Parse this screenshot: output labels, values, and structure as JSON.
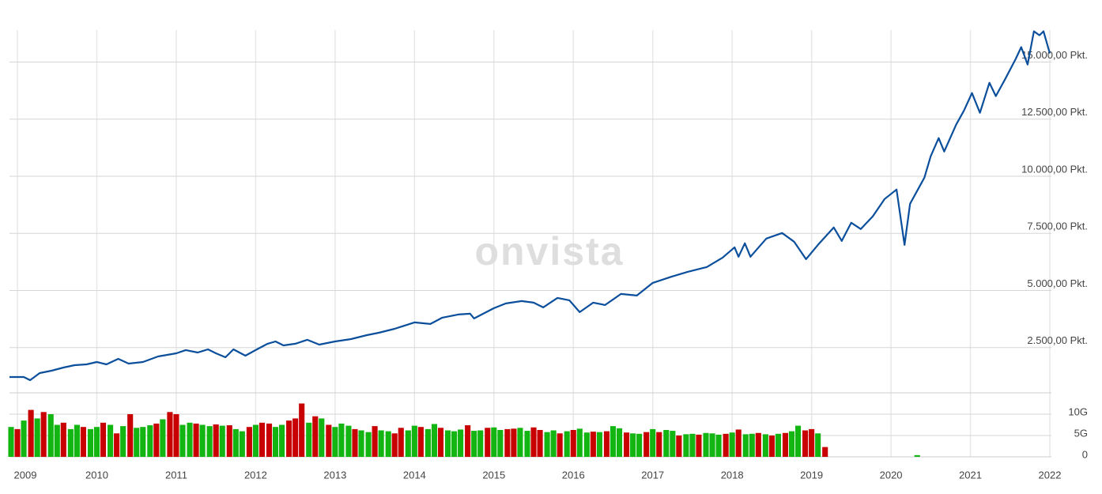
{
  "chart_data": [
    {
      "type": "line",
      "watermark": "onvista",
      "color": "#0b4f9c",
      "grid": true,
      "x": [
        2008.9,
        2009.08,
        2009.16,
        2009.28,
        2009.43,
        2009.58,
        2009.72,
        2009.87,
        2010.0,
        2010.12,
        2010.27,
        2010.4,
        2010.58,
        2010.77,
        2011.0,
        2011.12,
        2011.27,
        2011.4,
        2011.5,
        2011.62,
        2011.72,
        2011.87,
        2012.0,
        2012.15,
        2012.25,
        2012.35,
        2012.5,
        2012.65,
        2012.8,
        2013.0,
        2013.2,
        2013.4,
        2013.55,
        2013.75,
        2014.0,
        2014.2,
        2014.35,
        2014.55,
        2014.7,
        2014.75,
        2015.0,
        2015.15,
        2015.35,
        2015.5,
        2015.62,
        2015.8,
        2015.95,
        2016.08,
        2016.25,
        2016.4,
        2016.6,
        2016.8,
        2017.0,
        2017.24,
        2017.44,
        2017.68,
        2017.88,
        2018.03,
        2018.08,
        2018.16,
        2018.23,
        2018.43,
        2018.63,
        2018.78,
        2018.93,
        2019.08,
        2019.28,
        2019.38,
        2019.5,
        2019.62,
        2019.77,
        2019.92,
        2020.07,
        2020.17,
        2020.24,
        2020.42,
        2020.5,
        2020.6,
        2020.67,
        2020.82,
        2020.92,
        2021.02,
        2021.12,
        2021.24,
        2021.32,
        2021.44,
        2021.57,
        2021.64,
        2021.72,
        2021.8,
        2021.87,
        2021.92,
        2022.0
      ],
      "values": [
        1212,
        1212,
        1074,
        1385,
        1489,
        1628,
        1731,
        1766,
        1870,
        1766,
        2008,
        1800,
        1870,
        2112,
        2251,
        2390,
        2286,
        2424,
        2251,
        2078,
        2424,
        2147,
        2390,
        2667,
        2770,
        2597,
        2667,
        2840,
        2632,
        2770,
        2874,
        3047,
        3151,
        3324,
        3601,
        3532,
        3809,
        3948,
        3982,
        3775,
        4225,
        4433,
        4536,
        4467,
        4259,
        4675,
        4571,
        4052,
        4467,
        4363,
        4848,
        4779,
        5333,
        5610,
        5818,
        6026,
        6441,
        6891,
        6476,
        7065,
        6476,
        7272,
        7515,
        7134,
        6372,
        6995,
        7757,
        7168,
        7965,
        7688,
        8242,
        9004,
        9419,
        6995,
        8796,
        9939,
        10874,
        11670,
        11081,
        12259,
        12882,
        13644,
        12778,
        14094,
        13506,
        14267,
        15133,
        15652,
        14891,
        16346,
        16173,
        16346,
        15376
      ],
      "xlim": [
        2008.9,
        2022.02
      ],
      "xticks": [
        2009,
        2010,
        2011,
        2012,
        2013,
        2014,
        2015,
        2016,
        2017,
        2018,
        2019,
        2020,
        2021,
        2022
      ],
      "ylim": [
        520,
        16400
      ],
      "yticks": [
        {
          "value": 2500,
          "label": "2.500,00 Pkt."
        },
        {
          "value": 5000,
          "label": "5.000,00 Pkt."
        },
        {
          "value": 7500,
          "label": "7.500,00 Pkt."
        },
        {
          "value": 10000,
          "label": "10.000,00 Pkt."
        },
        {
          "value": 12500,
          "label": "12.500,00 Pkt."
        },
        {
          "value": 15000,
          "label": "15.000,00 Pkt."
        }
      ]
    },
    {
      "type": "bar",
      "grid": true,
      "x": [
        2008.92,
        2009.0,
        2009.08,
        2009.17,
        2009.25,
        2009.33,
        2009.42,
        2009.5,
        2009.58,
        2009.67,
        2009.75,
        2009.83,
        2009.92,
        2010.0,
        2010.08,
        2010.17,
        2010.25,
        2010.33,
        2010.42,
        2010.5,
        2010.58,
        2010.67,
        2010.75,
        2010.83,
        2010.92,
        2011.0,
        2011.08,
        2011.17,
        2011.25,
        2011.33,
        2011.42,
        2011.5,
        2011.58,
        2011.67,
        2011.75,
        2011.83,
        2011.92,
        2012.0,
        2012.08,
        2012.17,
        2012.25,
        2012.33,
        2012.42,
        2012.5,
        2012.58,
        2012.67,
        2012.75,
        2012.83,
        2012.92,
        2013.0,
        2013.08,
        2013.17,
        2013.25,
        2013.33,
        2013.42,
        2013.5,
        2013.58,
        2013.67,
        2013.75,
        2013.83,
        2013.92,
        2014.0,
        2014.08,
        2014.17,
        2014.25,
        2014.33,
        2014.42,
        2014.5,
        2014.58,
        2014.67,
        2014.75,
        2014.83,
        2014.92,
        2015.0,
        2015.08,
        2015.17,
        2015.25,
        2015.33,
        2015.42,
        2015.5,
        2015.58,
        2015.67,
        2015.75,
        2015.83,
        2015.92,
        2016.0,
        2016.08,
        2016.17,
        2016.25,
        2016.33,
        2016.42,
        2016.5,
        2016.58,
        2016.67,
        2016.75,
        2016.83,
        2016.92,
        2017.0,
        2017.08,
        2017.17,
        2017.25,
        2017.33,
        2017.42,
        2017.5,
        2017.58,
        2017.67,
        2017.75,
        2017.83,
        2017.92,
        2018.0,
        2018.08,
        2018.17,
        2018.25,
        2018.33,
        2018.42,
        2018.5,
        2018.58,
        2018.67,
        2018.75,
        2018.83,
        2018.92,
        2019.0,
        2019.08,
        2019.17,
        2020.33
      ],
      "values": [
        7,
        6.5,
        8.5,
        11,
        9,
        10.5,
        10,
        7.5,
        8,
        6.5,
        7.5,
        7,
        6.5,
        7,
        8,
        7.5,
        5.5,
        7.2,
        10,
        6.8,
        7,
        7.4,
        7.8,
        8.8,
        10.5,
        10,
        7.5,
        8,
        7.8,
        7.5,
        7.2,
        7.6,
        7.3,
        7.4,
        6.5,
        6,
        7,
        7.5,
        8,
        7.8,
        7,
        7.5,
        8.5,
        9,
        12.5,
        8,
        9.5,
        9,
        7.5,
        7,
        7.8,
        7.3,
        6.5,
        6.2,
        5.8,
        7.2,
        6.2,
        6,
        5.5,
        6.8,
        6.2,
        7.3,
        7,
        6.5,
        7.7,
        6.8,
        6.2,
        6,
        6.4,
        7.4,
        6.1,
        6.2,
        6.8,
        6.9,
        6.3,
        6.5,
        6.6,
        6.8,
        6.1,
        6.9,
        6.3,
        5.8,
        6.2,
        5.5,
        6,
        6.3,
        6.6,
        5.7,
        5.9,
        5.8,
        6,
        7.2,
        6.7,
        5.7,
        5.5,
        5.4,
        5.8,
        6.5,
        5.8,
        6.3,
        6.1,
        5,
        5.3,
        5.4,
        5.2,
        5.6,
        5.5,
        5.2,
        5.4,
        5.7,
        6.4,
        5.3,
        5.4,
        5.6,
        5.3,
        5,
        5.4,
        5.6,
        6,
        7.3,
        6.2,
        6.5,
        5.5,
        2.3,
        0.4
      ],
      "colors": [
        "#12b512",
        "#c80000",
        "#12b512",
        "#c80000",
        "#12b512",
        "#c80000",
        "#12b512",
        "#12b512",
        "#c80000",
        "#12b512",
        "#12b512",
        "#c80000",
        "#12b512",
        "#12b512",
        "#c80000",
        "#12b512",
        "#c80000",
        "#12b512",
        "#c80000",
        "#12b512",
        "#12b512",
        "#12b512",
        "#c80000",
        "#12b512",
        "#c80000",
        "#c80000",
        "#12b512",
        "#12b512",
        "#c80000",
        "#12b512",
        "#12b512",
        "#c80000",
        "#12b512",
        "#c80000",
        "#12b512",
        "#12b512",
        "#c80000",
        "#12b512",
        "#c80000",
        "#c80000",
        "#12b512",
        "#12b512",
        "#c80000",
        "#c80000",
        "#c80000",
        "#12b512",
        "#c80000",
        "#12b512",
        "#c80000",
        "#12b512",
        "#12b512",
        "#12b512",
        "#c80000",
        "#12b512",
        "#12b512",
        "#c80000",
        "#12b512",
        "#12b512",
        "#c80000",
        "#c80000",
        "#12b512",
        "#12b512",
        "#c80000",
        "#12b512",
        "#12b512",
        "#c80000",
        "#12b512",
        "#12b512",
        "#12b512",
        "#c80000",
        "#12b512",
        "#12b512",
        "#c80000",
        "#12b512",
        "#12b512",
        "#c80000",
        "#c80000",
        "#12b512",
        "#12b512",
        "#c80000",
        "#c80000",
        "#12b512",
        "#12b512",
        "#c80000",
        "#12b512",
        "#c80000",
        "#12b512",
        "#12b512",
        "#c80000",
        "#12b512",
        "#c80000",
        "#12b512",
        "#12b512",
        "#c80000",
        "#12b512",
        "#12b512",
        "#c80000",
        "#12b512",
        "#c80000",
        "#12b512",
        "#12b512",
        "#c80000",
        "#12b512",
        "#12b512",
        "#c80000",
        "#12b512",
        "#12b512",
        "#12b512",
        "#c80000",
        "#12b512",
        "#c80000",
        "#12b512",
        "#12b512",
        "#c80000",
        "#12b512",
        "#c80000",
        "#12b512",
        "#c80000",
        "#12b512",
        "#12b512",
        "#c80000",
        "#c80000",
        "#12b512",
        "#c80000",
        "#12b512"
      ],
      "xlim": [
        2008.9,
        2022.02
      ],
      "xticks": [
        2009,
        2010,
        2011,
        2012,
        2013,
        2014,
        2015,
        2016,
        2017,
        2018,
        2019,
        2020,
        2021,
        2022
      ],
      "ylim": [
        0,
        15
      ],
      "yticks": [
        {
          "value": 0,
          "label": "0"
        },
        {
          "value": 5,
          "label": "5G"
        },
        {
          "value": 10,
          "label": "10G"
        }
      ]
    }
  ]
}
